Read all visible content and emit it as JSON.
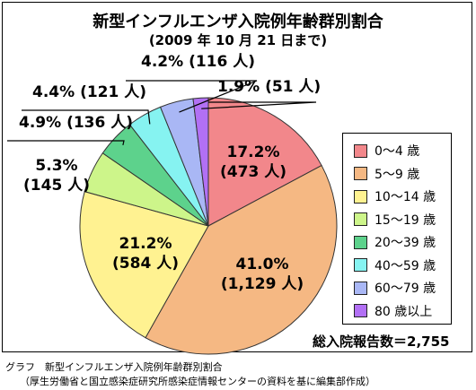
{
  "chart_data": {
    "type": "pie",
    "title": "新型インフルエンザ入院例年齢群別割合",
    "subtitle": "(2009 年 10 月 21 日まで)",
    "slices": [
      {
        "label": "0～4 歳",
        "percent": 17.2,
        "count": 473,
        "percent_text": "17.2%",
        "count_text": "(473 人)",
        "color": "#f2878b"
      },
      {
        "label": "5～9 歳",
        "percent": 41.0,
        "count": 1129,
        "percent_text": "41.0%",
        "count_text": "(1,129 人)",
        "color": "#f5b883"
      },
      {
        "label": "10～14 歳",
        "percent": 21.2,
        "count": 584,
        "percent_text": "21.2%",
        "count_text": "(584 人)",
        "color": "#fff291"
      },
      {
        "label": "15～19 歳",
        "percent": 5.3,
        "count": 145,
        "percent_text": "5.3%",
        "count_text": "(145 人)",
        "color": "#cdf58a"
      },
      {
        "label": "20～39 歳",
        "percent": 4.9,
        "count": 136,
        "percent_text": "4.9%",
        "count_text": "(136 人)",
        "color": "#5dd28c"
      },
      {
        "label": "40～59 歳",
        "percent": 4.4,
        "count": 121,
        "percent_text": "4.4%",
        "count_text": "(121 人)",
        "color": "#86f3f1"
      },
      {
        "label": "60～79 歳",
        "percent": 4.2,
        "count": 116,
        "percent_text": "4.2%",
        "count_text": "(116 人)",
        "color": "#a9b7f5"
      },
      {
        "label": "80 歳以上",
        "percent": 1.9,
        "count": 51,
        "percent_text": "1.9%",
        "count_text": "(51 人)",
        "color": "#b270f5"
      }
    ],
    "legend_position": "right"
  },
  "total_text": "総入院報告数＝2,755",
  "caption": {
    "line1": "グラフ　新型インフルエンザ入院例年齢群別割合",
    "line2": "（厚生労働省と国立感染症研究所感染症情報センターの資料を基に編集部作成）"
  }
}
